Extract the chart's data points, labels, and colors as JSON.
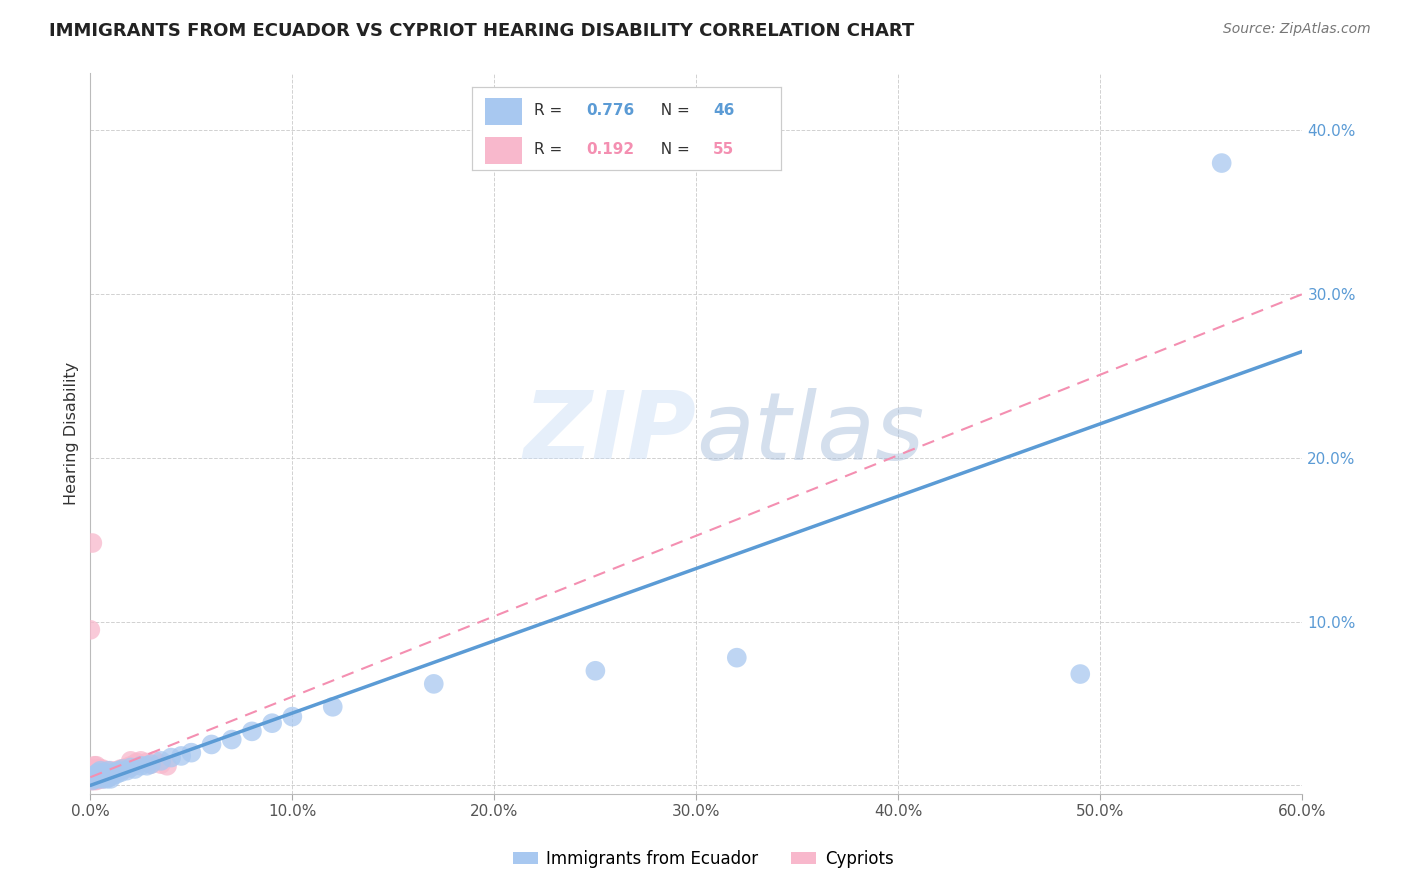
{
  "title": "IMMIGRANTS FROM ECUADOR VS CYPRIOT HEARING DISABILITY CORRELATION CHART",
  "source": "Source: ZipAtlas.com",
  "ylabel": "Hearing Disability",
  "xlim": [
    0.0,
    0.6
  ],
  "ylim": [
    -0.005,
    0.435
  ],
  "xticks": [
    0.0,
    0.1,
    0.2,
    0.3,
    0.4,
    0.5,
    0.6
  ],
  "yticks": [
    0.0,
    0.1,
    0.2,
    0.3,
    0.4
  ],
  "ytick_labels": [
    "",
    "10.0%",
    "20.0%",
    "30.0%",
    "40.0%"
  ],
  "xtick_labels": [
    "0.0%",
    "10.0%",
    "20.0%",
    "30.0%",
    "40.0%",
    "50.0%",
    "60.0%"
  ],
  "r_ecuador": "0.776",
  "n_ecuador": "46",
  "r_cypriot": "0.192",
  "n_cypriot": "55",
  "blue_color": "#5b9bd5",
  "pink_color": "#f48fb1",
  "scatter_blue_color": "#a8c8f0",
  "scatter_pink_color": "#f8b8cc",
  "watermark_zip": "ZIP",
  "watermark_atlas": "atlas",
  "blue_line_x": [
    0.0,
    0.6
  ],
  "blue_line_y": [
    0.0,
    0.265
  ],
  "pink_line_x": [
    0.0,
    0.6
  ],
  "pink_line_y": [
    0.005,
    0.3
  ],
  "ecuador_x": [
    0.001,
    0.002,
    0.002,
    0.003,
    0.003,
    0.004,
    0.004,
    0.005,
    0.005,
    0.006,
    0.006,
    0.007,
    0.007,
    0.008,
    0.008,
    0.009,
    0.009,
    0.01,
    0.01,
    0.011,
    0.012,
    0.013,
    0.014,
    0.015,
    0.016,
    0.018,
    0.02,
    0.022,
    0.025,
    0.028,
    0.03,
    0.035,
    0.04,
    0.045,
    0.05,
    0.06,
    0.07,
    0.08,
    0.09,
    0.1,
    0.12,
    0.17,
    0.25,
    0.32,
    0.49,
    0.56
  ],
  "ecuador_y": [
    0.003,
    0.004,
    0.006,
    0.005,
    0.007,
    0.004,
    0.008,
    0.005,
    0.009,
    0.004,
    0.007,
    0.005,
    0.008,
    0.004,
    0.007,
    0.005,
    0.009,
    0.004,
    0.007,
    0.006,
    0.008,
    0.007,
    0.009,
    0.008,
    0.01,
    0.009,
    0.011,
    0.01,
    0.012,
    0.012,
    0.013,
    0.015,
    0.017,
    0.018,
    0.02,
    0.025,
    0.028,
    0.033,
    0.038,
    0.042,
    0.048,
    0.062,
    0.07,
    0.078,
    0.068,
    0.38
  ],
  "cypriot_x": [
    0.0,
    0.0,
    0.001,
    0.001,
    0.001,
    0.001,
    0.001,
    0.002,
    0.002,
    0.002,
    0.002,
    0.002,
    0.003,
    0.003,
    0.003,
    0.003,
    0.003,
    0.004,
    0.004,
    0.004,
    0.004,
    0.005,
    0.005,
    0.005,
    0.006,
    0.006,
    0.006,
    0.007,
    0.007,
    0.008,
    0.008,
    0.009,
    0.009,
    0.01,
    0.01,
    0.011,
    0.012,
    0.013,
    0.014,
    0.015,
    0.016,
    0.017,
    0.018,
    0.02,
    0.02,
    0.022,
    0.023,
    0.025,
    0.028,
    0.03,
    0.032,
    0.035,
    0.038,
    0.0,
    0.001
  ],
  "cypriot_y": [
    0.003,
    0.005,
    0.003,
    0.004,
    0.006,
    0.008,
    0.01,
    0.003,
    0.005,
    0.007,
    0.009,
    0.012,
    0.003,
    0.005,
    0.007,
    0.009,
    0.012,
    0.004,
    0.006,
    0.008,
    0.01,
    0.004,
    0.007,
    0.01,
    0.004,
    0.007,
    0.01,
    0.005,
    0.008,
    0.005,
    0.009,
    0.005,
    0.008,
    0.006,
    0.009,
    0.007,
    0.008,
    0.009,
    0.009,
    0.01,
    0.01,
    0.01,
    0.011,
    0.012,
    0.015,
    0.013,
    0.014,
    0.015,
    0.014,
    0.013,
    0.015,
    0.013,
    0.012,
    0.095,
    0.148
  ]
}
